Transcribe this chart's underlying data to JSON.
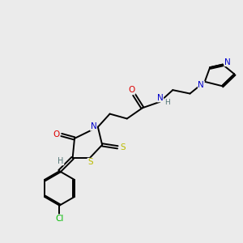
{
  "bg_color": "#ebebeb",
  "colors": {
    "C": "#000000",
    "N": "#0000cc",
    "O": "#dd0000",
    "S": "#bbbb00",
    "Cl": "#00bb00",
    "H": "#557777"
  },
  "bond_lw": 1.4
}
